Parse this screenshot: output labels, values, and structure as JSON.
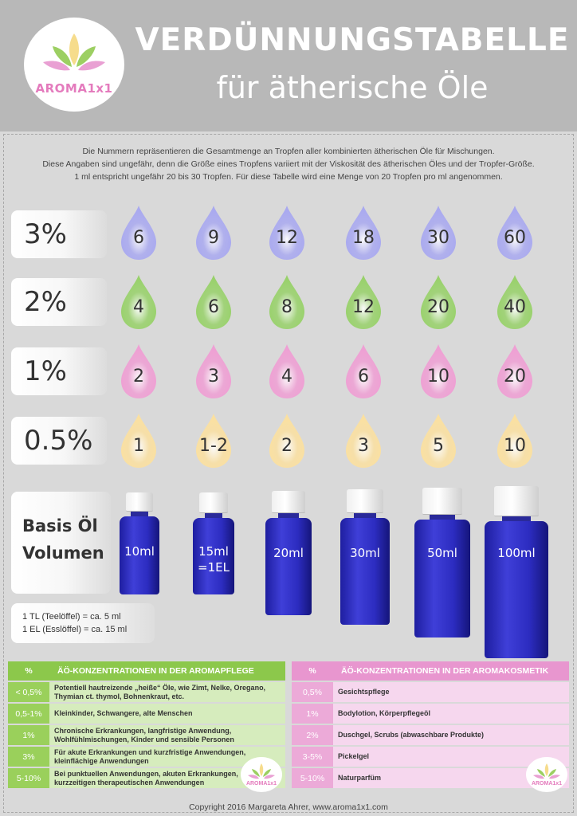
{
  "header": {
    "title": "VERDÜNNUNGSTABELLE",
    "subtitle": "für ätherische Öle",
    "logo_text": "AROMA1x1"
  },
  "intro": {
    "line1": "Die Nummern repräsentieren die Gesamtmenge an Tropfen aller kombinierten ätherischen Öle für Mischungen.",
    "line2": "Diese Angaben sind ungefähr, denn die Größe eines Tropfens variiert mit der Viskosität des ätherischen Öles und der Tropfer-Größe.",
    "line3": "1 ml entspricht ungefähr 20 bis 30 Tropfen. Für diese Tabelle wird eine Menge von 20 Tropfen pro ml angenommen."
  },
  "rows": [
    {
      "label": "3%",
      "color": "#a9a9f0",
      "drops": [
        "6",
        "9",
        "12",
        "18",
        "30",
        "60"
      ]
    },
    {
      "label": "2%",
      "color": "#98d16a",
      "drops": [
        "4",
        "6",
        "8",
        "12",
        "20",
        "40"
      ]
    },
    {
      "label": "1%",
      "color": "#ef9fd4",
      "drops": [
        "2",
        "3",
        "4",
        "6",
        "10",
        "20"
      ]
    },
    {
      "label": "0.5%",
      "color": "#fbe0a0",
      "drops": [
        "1",
        "1-2",
        "2",
        "3",
        "5",
        "10"
      ]
    }
  ],
  "basis": {
    "line1": "Basis Öl",
    "line2": "Volumen",
    "bottles": [
      {
        "label": "10ml",
        "sublabel": ""
      },
      {
        "label": "15ml",
        "sublabel": "=1EL"
      },
      {
        "label": "20ml",
        "sublabel": ""
      },
      {
        "label": "30ml",
        "sublabel": ""
      },
      {
        "label": "50ml",
        "sublabel": ""
      },
      {
        "label": "100ml",
        "sublabel": ""
      }
    ]
  },
  "spoons": {
    "tl": "1 TL (Teelöffel) = ca. 5 ml",
    "el": "1 EL (Esslöffel) = ca. 15 ml"
  },
  "aromapflege": {
    "head_pct": "%",
    "head_title": "ÄÖ-KONZENTRATIONEN IN DER AROMAPFLEGE",
    "rows": [
      {
        "pct": "< 0,5%",
        "text1": "Potentiell hautreizende „heiße“ Öle, wie Zimt, Nelke, Oregano,",
        "text2": "Thymian ct. thymol, Bohnenkraut, etc."
      },
      {
        "pct": "0,5-1%",
        "text1": "Kleinkinder, Schwangere, alte Menschen",
        "text2": ""
      },
      {
        "pct": "1%",
        "text1": "Chronische Erkrankungen, langfristige Anwendung,",
        "text2": "Wohlfühlmischungen, Kinder und sensible Personen"
      },
      {
        "pct": "3%",
        "text1": "Für akute Erkrankungen und kurzfristige Anwendungen,",
        "text2": "kleinflächige Anwendungen"
      },
      {
        "pct": "5-10%",
        "text1": "Bei punktuellen Anwendungen, akuten Erkrankungen,",
        "text2": "kurzzeitigen therapeutischen Anwendungen"
      }
    ]
  },
  "aromakosmetik": {
    "head_pct": "%",
    "head_title": "ÄÖ-KONZENTRATIONEN IN DER AROMAKOSMETIK",
    "rows": [
      {
        "pct": "0,5%",
        "text": "Gesichtspflege"
      },
      {
        "pct": "1%",
        "text": "Bodylotion, Körperpflegeöl"
      },
      {
        "pct": "2%",
        "text": "Duschgel, Scrubs (abwaschbare Produkte)"
      },
      {
        "pct": "3-5%",
        "text": "Pickelgel"
      },
      {
        "pct": "5-10%",
        "text": "Naturparfüm"
      }
    ]
  },
  "footer": "Copyright 2016 Margareta Ahrer, www.aroma1x1.com"
}
